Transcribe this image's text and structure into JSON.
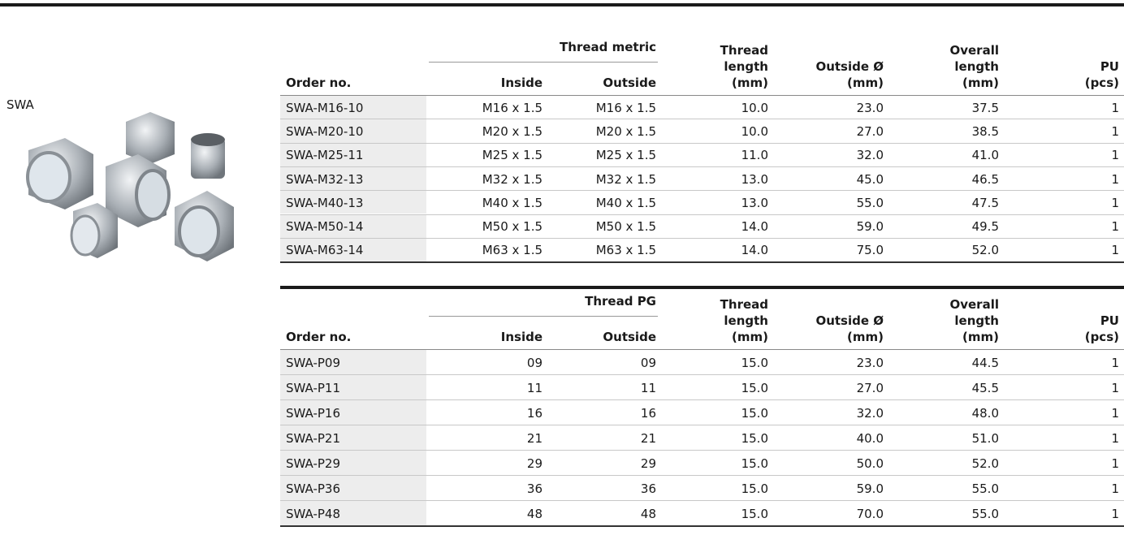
{
  "side": {
    "label": "SWA"
  },
  "tables": [
    {
      "group_header": "Thread metric",
      "columns": [
        [
          "Order no."
        ],
        [
          "Inside"
        ],
        [
          "Outside"
        ],
        [
          "Thread",
          "length",
          "(mm)"
        ],
        [
          "Outside Ø",
          "(mm)"
        ],
        [
          "Overall",
          "length",
          "(mm)"
        ],
        [
          "PU",
          "(pcs)"
        ]
      ],
      "rows": [
        [
          "SWA-M16-10",
          "M16 x 1.5",
          "M16 x 1.5",
          "10.0",
          "23.0",
          "37.5",
          "1"
        ],
        [
          "SWA-M20-10",
          "M20 x 1.5",
          "M20 x 1.5",
          "10.0",
          "27.0",
          "38.5",
          "1"
        ],
        [
          "SWA-M25-11",
          "M25 x 1.5",
          "M25 x 1.5",
          "11.0",
          "32.0",
          "41.0",
          "1"
        ],
        [
          "SWA-M32-13",
          "M32 x 1.5",
          "M32 x 1.5",
          "13.0",
          "45.0",
          "46.5",
          "1"
        ],
        [
          "SWA-M40-13",
          "M40 x 1.5",
          "M40 x 1.5",
          "13.0",
          "55.0",
          "47.5",
          "1"
        ],
        [
          "SWA-M50-14",
          "M50 x 1.5",
          "M50 x 1.5",
          "14.0",
          "59.0",
          "49.5",
          "1"
        ],
        [
          "SWA-M63-14",
          "M63 x 1.5",
          "M63 x 1.5",
          "14.0",
          "75.0",
          "52.0",
          "1"
        ]
      ]
    },
    {
      "group_header": "Thread PG",
      "columns": [
        [
          "Order no."
        ],
        [
          "Inside"
        ],
        [
          "Outside"
        ],
        [
          "Thread",
          "length",
          "(mm)"
        ],
        [
          "Outside Ø",
          "(mm)"
        ],
        [
          "Overall",
          "length",
          "(mm)"
        ],
        [
          "PU",
          "(pcs)"
        ]
      ],
      "rows": [
        [
          "SWA-P09",
          "09",
          "09",
          "15.0",
          "23.0",
          "44.5",
          "1"
        ],
        [
          "SWA-P11",
          "11",
          "11",
          "15.0",
          "27.0",
          "45.5",
          "1"
        ],
        [
          "SWA-P16",
          "16",
          "16",
          "15.0",
          "32.0",
          "48.0",
          "1"
        ],
        [
          "SWA-P21",
          "21",
          "21",
          "15.0",
          "40.0",
          "51.0",
          "1"
        ],
        [
          "SWA-P29",
          "29",
          "29",
          "15.0",
          "50.0",
          "52.0",
          "1"
        ],
        [
          "SWA-P36",
          "36",
          "36",
          "15.0",
          "59.0",
          "55.0",
          "1"
        ],
        [
          "SWA-P48",
          "48",
          "48",
          "15.0",
          "70.0",
          "55.0",
          "1"
        ]
      ]
    }
  ]
}
